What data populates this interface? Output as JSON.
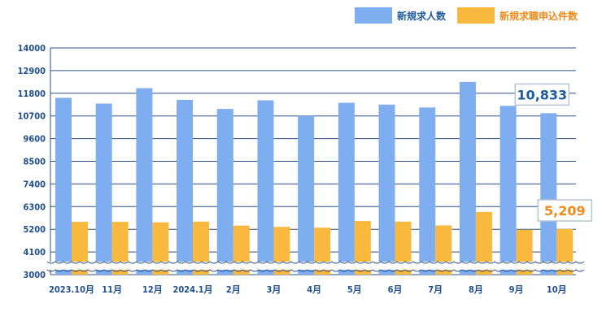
{
  "chart_data": {
    "type": "bar",
    "categories": [
      "2023.10月",
      "11月",
      "12月",
      "2024.1月",
      "2月",
      "3月",
      "4月",
      "5月",
      "6月",
      "7月",
      "8月",
      "9月",
      "10月"
    ],
    "series": [
      {
        "name": "新規求人数",
        "color": "#7faef0",
        "values": [
          11580,
          11300,
          12050,
          11480,
          11040,
          11460,
          10700,
          11340,
          11250,
          11110,
          12350,
          11190,
          10833
        ]
      },
      {
        "name": "新規求職申込件数",
        "color": "#f9b93e",
        "values": [
          5560,
          5560,
          5540,
          5570,
          5380,
          5320,
          5280,
          5600,
          5570,
          5390,
          6040,
          5180,
          5209
        ]
      }
    ],
    "yticks": [
      3000,
      4100,
      5200,
      6300,
      7400,
      8500,
      9600,
      10700,
      11800,
      12900,
      14000
    ],
    "ylim": [
      3000,
      14000
    ],
    "axis_break": true,
    "grid": true,
    "legend_position": "top-right",
    "annotations": [
      {
        "text": "10,833",
        "series": 0,
        "index": 12,
        "color": "#1f5b9e"
      },
      {
        "text": "5,209",
        "series": 1,
        "index": 12,
        "color": "#f08a1a"
      }
    ]
  }
}
